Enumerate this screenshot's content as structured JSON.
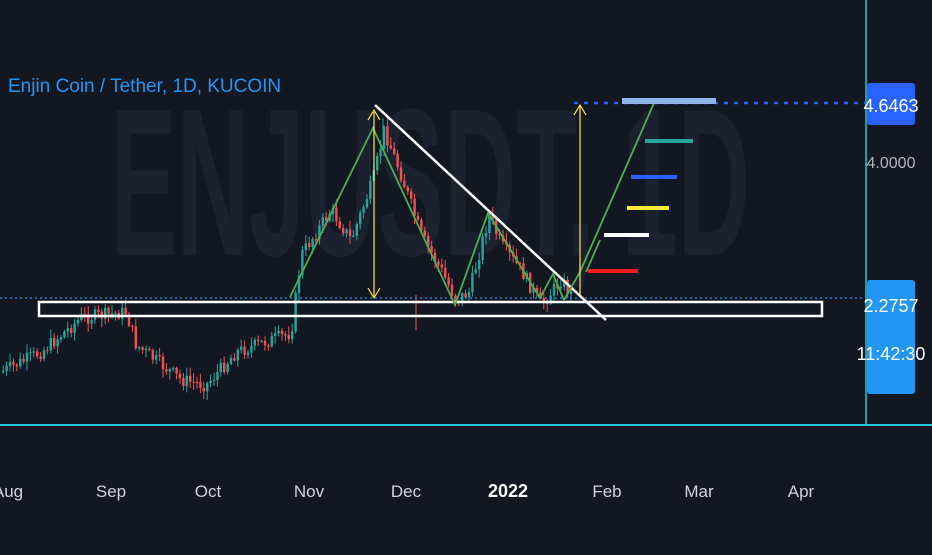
{
  "header": {
    "symbol_title": "Enjin Coin / Tether, 1D, KUCOIN",
    "watermark": "ENJUSDT, 1D"
  },
  "price_scale": {
    "current_price": "4.6463",
    "level_4": "4.0000",
    "last_price": "2.2757",
    "countdown": "11:42:30"
  },
  "time_axis": [
    "Aug",
    "Sep",
    "Oct",
    "Nov",
    "Dec",
    "2022",
    "Feb",
    "Mar",
    "Apr"
  ],
  "colors": {
    "background": "#131722",
    "up_candle": "#26a69a",
    "down_candle": "#ef5350",
    "accent_blue": "#2962ff",
    "label_blue": "#2196f3",
    "pattern_green": "#4caf50",
    "arrow_yellow": "#ffeb3b",
    "cyan_line": "#26c6da"
  },
  "chart_data": {
    "type": "candlestick",
    "title": "Enjin Coin / Tether, 1D, KUCOIN",
    "x_ticks": [
      "Aug",
      "Sep",
      "Oct",
      "Nov",
      "Dec",
      "2022",
      "Feb",
      "Mar",
      "Apr"
    ],
    "y_ticks": [
      "4.6463",
      "4.0000",
      "2.2757"
    ],
    "series": [
      {
        "x": [
          "Aug",
          "Sep",
          "Oct",
          "Nov",
          "Dec",
          "2022"
        ],
        "close_approx": [
          1.35,
          1.95,
          1.45,
          2.1,
          3.3,
          2.7
        ]
      }
    ],
    "annotations": {
      "support_zone": [
        2.05,
        2.25
      ],
      "target_price": 4.6463,
      "resistance_trendline": "descending from Nov high to Jan",
      "projected_target_levels": [
        "red",
        "white",
        "yellow",
        "blue",
        "teal",
        "light-blue"
      ]
    }
  }
}
